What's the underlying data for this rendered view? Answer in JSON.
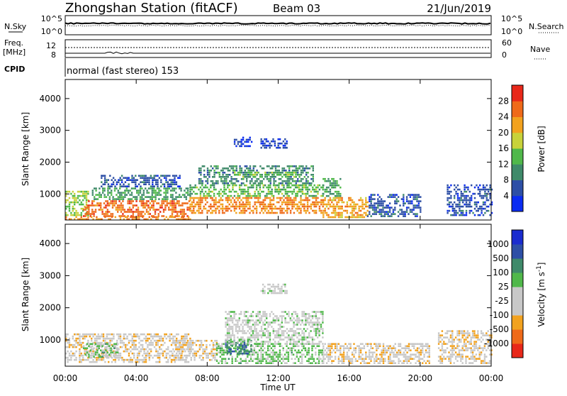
{
  "header": {
    "title": "Zhongshan Station (fitACF)",
    "beam": "Beam 03",
    "date": "21/Jun/2019"
  },
  "status_panels": {
    "nsky_label": "N.Sky",
    "nsearch_label": "N.Search",
    "noise_ticks_left": [
      "10^5",
      "10^0"
    ],
    "noise_ticks_right": [
      "10^5",
      "10^0"
    ],
    "freq_label_1": "Freq.",
    "freq_label_2": "[MHz]",
    "freq_ticks": [
      "12",
      "8"
    ],
    "nave_label": "Nave",
    "nave_ticks": [
      "60",
      "0"
    ],
    "cpid_label": "CPID",
    "cpid_text": "normal (fast stereo) 153"
  },
  "colors": {
    "power_scale": [
      "#0b2cf2",
      "#2d4fa6",
      "#3f8a6a",
      "#50b84a",
      "#c8d23a",
      "#f2a21f",
      "#ef6a1a",
      "#e8281a"
    ],
    "velocity_scale": [
      "#e8281a",
      "#ef6a1a",
      "#f2a21f",
      "#c8c8c8",
      "#c8c8c8",
      "#50b84a",
      "#3f8a6a",
      "#2d4fa6",
      "#1a2ccf"
    ]
  },
  "chart_data": [
    {
      "type": "heatmap",
      "panel": "power",
      "xlabel": "",
      "ylabel": "Slant Range [km]",
      "x_ticks": [
        "00:00",
        "04:00",
        "08:00",
        "12:00",
        "16:00",
        "20:00",
        "00:00"
      ],
      "y_ticks": [
        1000,
        2000,
        3000,
        4000
      ],
      "ylim": [
        180,
        4600
      ],
      "colorbar_label": "Power [dB]",
      "colorbar_ticks": [
        "28",
        "24",
        "20",
        "16",
        "12",
        "8",
        "4"
      ],
      "colorbar_range": [
        0,
        32
      ],
      "regions": [
        {
          "t0": 0.0,
          "t1": 1.3,
          "r0": 350,
          "r1": 1100,
          "value": 16
        },
        {
          "t0": 1.0,
          "t1": 7.0,
          "r0": 300,
          "r1": 800,
          "value": 26
        },
        {
          "t0": 1.5,
          "t1": 7.0,
          "r0": 800,
          "r1": 1200,
          "value": 12
        },
        {
          "t0": 2.0,
          "t1": 6.5,
          "r0": 1200,
          "r1": 1600,
          "value": 6
        },
        {
          "t0": 7.0,
          "t1": 14.5,
          "r0": 400,
          "r1": 900,
          "value": 24
        },
        {
          "t0": 7.0,
          "t1": 14.5,
          "r0": 900,
          "r1": 1300,
          "value": 14
        },
        {
          "t0": 7.5,
          "t1": 14.0,
          "r0": 1300,
          "r1": 1900,
          "value": 10
        },
        {
          "t0": 9.5,
          "t1": 13.0,
          "r0": 1500,
          "r1": 1700,
          "value": 14
        },
        {
          "t0": 11.0,
          "t1": 12.5,
          "r0": 2450,
          "r1": 2750,
          "value": 5
        },
        {
          "t0": 9.5,
          "t1": 10.5,
          "r0": 2500,
          "r1": 2800,
          "value": 4
        },
        {
          "t0": 14.5,
          "t1": 17.0,
          "r0": 250,
          "r1": 900,
          "value": 22
        },
        {
          "t0": 14.5,
          "t1": 15.5,
          "r0": 900,
          "r1": 1500,
          "value": 12
        },
        {
          "t0": 17.0,
          "t1": 20.0,
          "r0": 300,
          "r1": 1000,
          "value": 6
        },
        {
          "t0": 21.5,
          "t1": 24.0,
          "r0": 300,
          "r1": 1300,
          "value": 6
        },
        {
          "t0": 0.0,
          "t1": 7.0,
          "r0": 180,
          "r1": 300,
          "value": 24
        }
      ]
    },
    {
      "type": "heatmap",
      "panel": "velocity",
      "xlabel": "Time UT",
      "ylabel": "Slant Range [km]",
      "x_ticks": [
        "00:00",
        "04:00",
        "08:00",
        "12:00",
        "16:00",
        "20:00",
        "00:00"
      ],
      "y_ticks": [
        1000,
        2000,
        3000,
        4000
      ],
      "ylim": [
        180,
        4600
      ],
      "colorbar_label": "Velocity [m s^-1]",
      "colorbar_ticks": [
        "1000",
        "500",
        "100",
        "25",
        "-25",
        "-100",
        "-500",
        "-1000"
      ],
      "colorbar_range": [
        -1200,
        1200
      ],
      "regions": [
        {
          "t0": 0.0,
          "t1": 7.0,
          "r0": 300,
          "r1": 1200,
          "value": -300
        },
        {
          "t0": 1.0,
          "t1": 3.0,
          "r0": 500,
          "r1": 900,
          "value": 200
        },
        {
          "t0": 6.0,
          "t1": 8.5,
          "r0": 400,
          "r1": 1000,
          "value": -300
        },
        {
          "t0": 8.5,
          "t1": 14.5,
          "r0": 300,
          "r1": 900,
          "value": 200
        },
        {
          "t0": 9.0,
          "t1": 10.5,
          "r0": 600,
          "r1": 1000,
          "value": 600
        },
        {
          "t0": 9.0,
          "t1": 14.5,
          "r0": 900,
          "r1": 1900,
          "value": 0
        },
        {
          "t0": 11.0,
          "t1": 12.5,
          "r0": 2450,
          "r1": 2750,
          "value": 0
        },
        {
          "t0": 14.5,
          "t1": 17.5,
          "r0": 250,
          "r1": 900,
          "value": -300
        },
        {
          "t0": 17.5,
          "t1": 20.5,
          "r0": 300,
          "r1": 900,
          "value": -300
        },
        {
          "t0": 21.0,
          "t1": 24.0,
          "r0": 300,
          "r1": 1300,
          "value": -300
        }
      ]
    }
  ]
}
